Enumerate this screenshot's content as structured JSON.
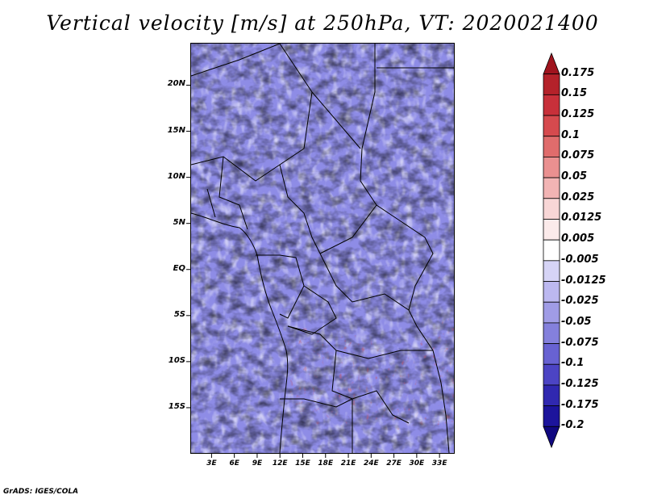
{
  "title": "Vertical velocity [m/s] at 250hPa, VT: 2020021400",
  "credit": "GrADS: IGES/COLA",
  "axes": {
    "latitudes": [
      {
        "value": 20,
        "label": "20N"
      },
      {
        "value": 15,
        "label": "15N"
      },
      {
        "value": 10,
        "label": "10N"
      },
      {
        "value": 5,
        "label": "5N"
      },
      {
        "value": 0,
        "label": "EQ"
      },
      {
        "value": -5,
        "label": "5S"
      },
      {
        "value": -10,
        "label": "10S"
      },
      {
        "value": -15,
        "label": "15S"
      }
    ],
    "longitudes": [
      {
        "value": 3,
        "label": "3E"
      },
      {
        "value": 6,
        "label": "6E"
      },
      {
        "value": 9,
        "label": "9E"
      },
      {
        "value": 12,
        "label": "12E"
      },
      {
        "value": 15,
        "label": "15E"
      },
      {
        "value": 18,
        "label": "18E"
      },
      {
        "value": 21,
        "label": "21E"
      },
      {
        "value": 24,
        "label": "24E"
      },
      {
        "value": 27,
        "label": "27E"
      },
      {
        "value": 30,
        "label": "30E"
      },
      {
        "value": 33,
        "label": "33E"
      }
    ],
    "lat_range": [
      -20,
      24.6
    ],
    "lon_range": [
      0.2,
      35
    ]
  },
  "colorbar": {
    "labels": [
      "0.175",
      "0.15",
      "0.125",
      "0.1",
      "0.075",
      "0.05",
      "0.025",
      "0.0125",
      "0.005",
      "-0.005",
      "-0.0125",
      "-0.025",
      "-0.05",
      "-0.075",
      "-0.1",
      "-0.125",
      "-0.175",
      "-0.2"
    ],
    "colors": [
      "#a0141e",
      "#b4222a",
      "#c8303a",
      "#d64a4e",
      "#e06c6c",
      "#ea9090",
      "#f2b4b4",
      "#f8d6d6",
      "#fbeaea",
      "#ffffff",
      "#d6d4f6",
      "#bcb8f0",
      "#a09ce6",
      "#8480dc",
      "#6862d2",
      "#4c44c4",
      "#3028b0",
      "#1c149c",
      "#100880"
    ]
  }
}
